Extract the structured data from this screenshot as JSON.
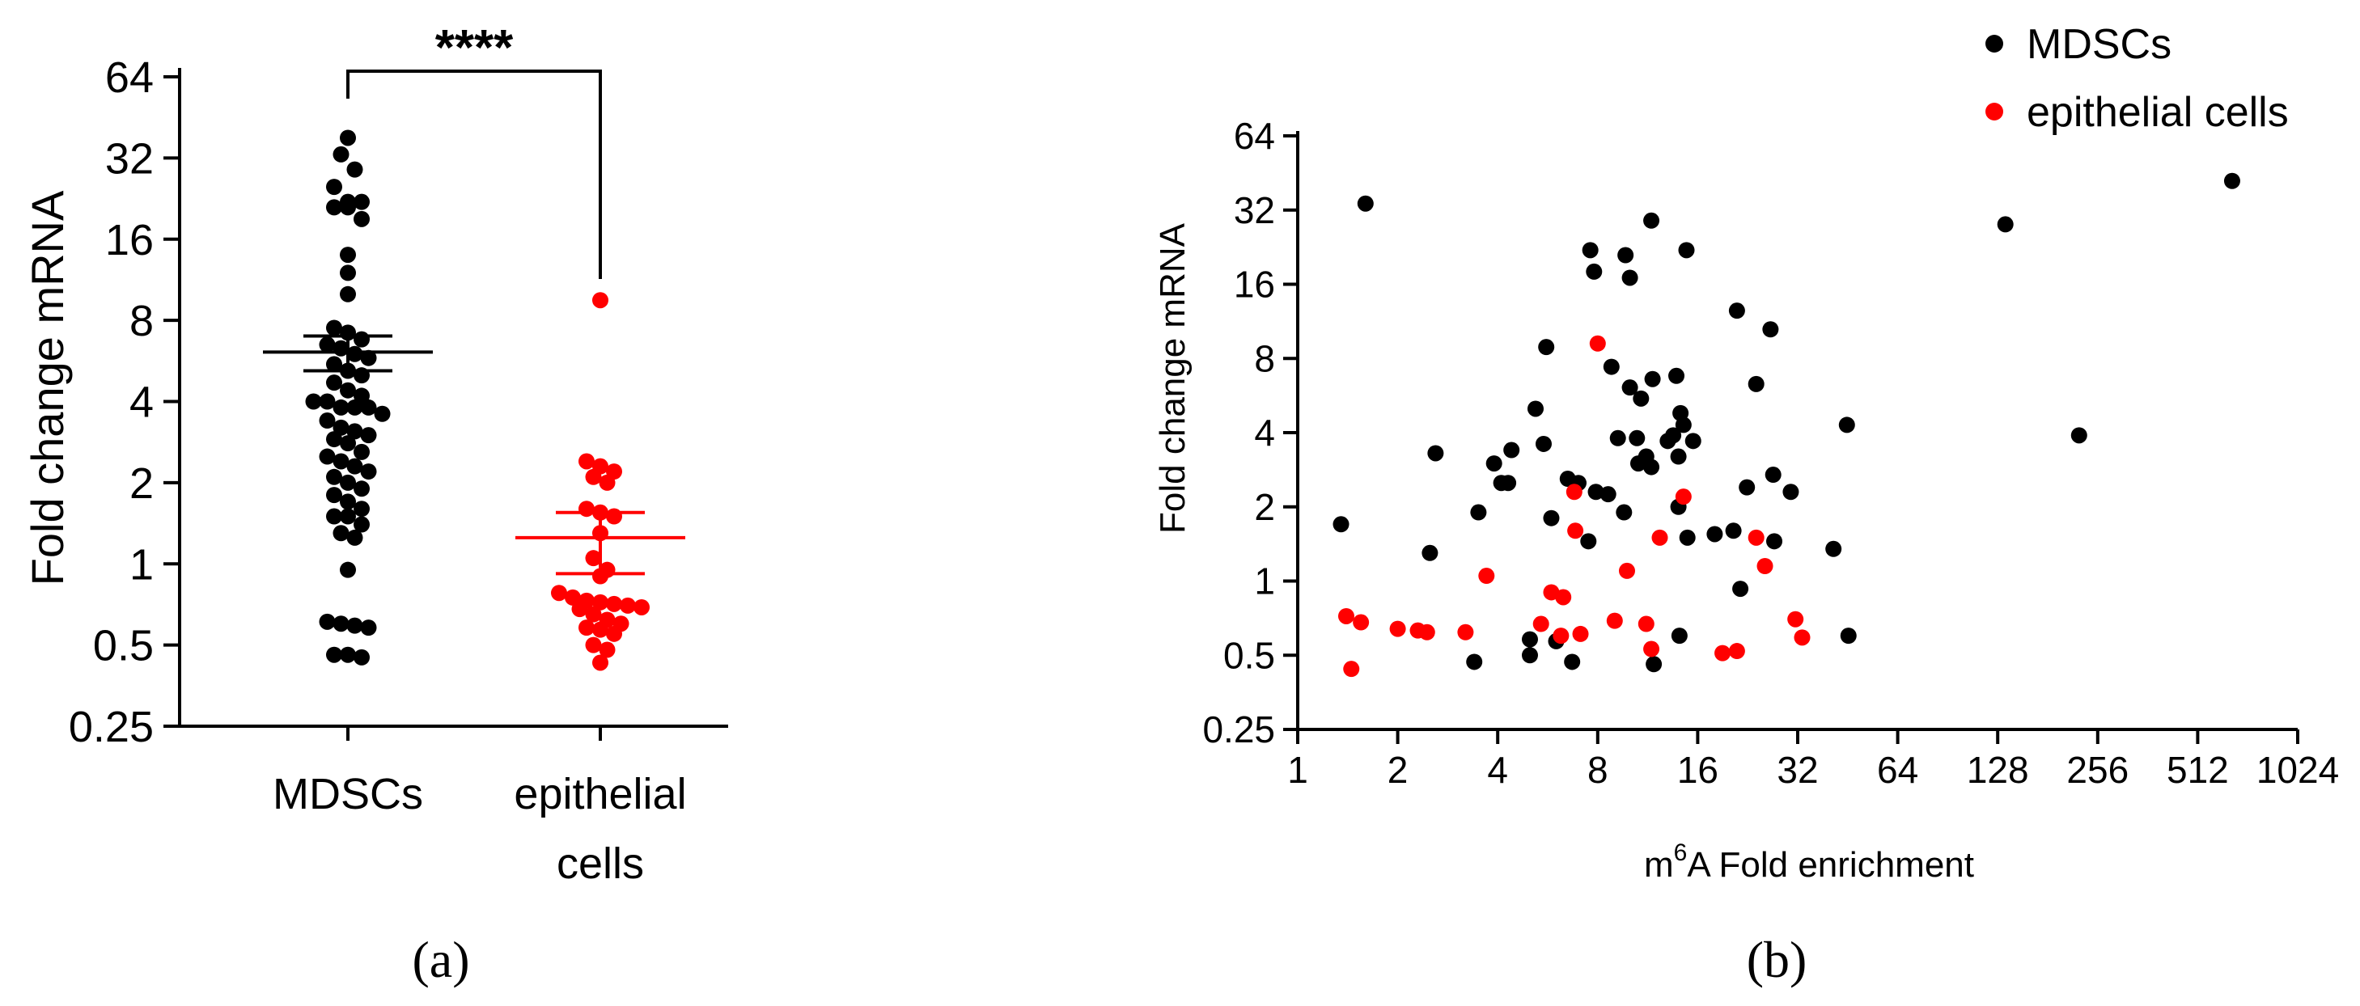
{
  "chart_data": [
    {
      "panel_label": "(a)",
      "type": "scatter",
      "subtype": "dot-plot with mean and SEM",
      "ylabel": "Fold change mRNA",
      "y_scale": "log2",
      "ylim": [
        0.25,
        64
      ],
      "y_ticks": [
        "0.25",
        "0.5",
        "1",
        "2",
        "4",
        "8",
        "16",
        "32",
        "64"
      ],
      "categories": [
        "MDSCs",
        "epithelial cells"
      ],
      "category_lines": [
        [
          "MDSCs"
        ],
        [
          "epithelial",
          "cells"
        ]
      ],
      "significance": "****",
      "colors": {
        "MDSCs": "#000000",
        "epithelial cells": "#ff0000"
      },
      "series": [
        {
          "name": "MDSCs",
          "mean": 6.1,
          "sem_lower": 5.2,
          "sem_upper": 7.0,
          "values": [
            38,
            33,
            29,
            25,
            22,
            22,
            21,
            21,
            19,
            14,
            12,
            10,
            7.5,
            7.2,
            6.8,
            6.5,
            6.3,
            6.0,
            5.8,
            5.5,
            5.2,
            5.0,
            4.7,
            4.4,
            4.2,
            4.0,
            4.0,
            3.8,
            3.8,
            3.8,
            3.6,
            3.4,
            3.2,
            3.1,
            3.0,
            2.9,
            2.8,
            2.6,
            2.5,
            2.4,
            2.3,
            2.2,
            2.1,
            2.0,
            1.9,
            1.8,
            1.7,
            1.6,
            1.5,
            1.5,
            1.4,
            1.3,
            1.25,
            0.95,
            0.61,
            0.6,
            0.59,
            0.58,
            0.46,
            0.46,
            0.45
          ]
        },
        {
          "name": "epithelial cells",
          "mean": 1.25,
          "sem_lower": 0.92,
          "sem_upper": 1.55,
          "values": [
            9.5,
            2.4,
            2.3,
            2.2,
            2.1,
            2.0,
            1.6,
            1.55,
            1.5,
            1.3,
            1.05,
            0.95,
            0.9,
            0.78,
            0.75,
            0.73,
            0.72,
            0.71,
            0.7,
            0.69,
            0.68,
            0.65,
            0.62,
            0.6,
            0.58,
            0.57,
            0.55,
            0.5,
            0.48,
            0.43
          ]
        }
      ]
    },
    {
      "panel_label": "(b)",
      "type": "scatter",
      "xlabel_prefix": "m",
      "xlabel_superscript": "6",
      "xlabel_rest": "A Fold enrichment",
      "ylabel": "Fold change mRNA",
      "x_scale": "log2",
      "y_scale": "log2",
      "xlim": [
        1,
        1024
      ],
      "ylim": [
        0.25,
        64
      ],
      "x_ticks": [
        "1",
        "2",
        "4",
        "8",
        "16",
        "32",
        "64",
        "128",
        "256",
        "512",
        "1024"
      ],
      "y_ticks": [
        "0.25",
        "0.5",
        "1",
        "2",
        "4",
        "8",
        "16",
        "32",
        "64"
      ],
      "legend_position": "top-right",
      "colors": {
        "MDSCs": "#000000",
        "epithelial cells": "#ff0000"
      },
      "series": [
        {
          "name": "MDSCs",
          "points": [
            [
              1.35,
              1.7
            ],
            [
              1.6,
              34
            ],
            [
              2.5,
              1.3
            ],
            [
              2.6,
              3.3
            ],
            [
              3.4,
              0.47
            ],
            [
              3.5,
              1.9
            ],
            [
              3.9,
              3.0
            ],
            [
              4.1,
              2.5
            ],
            [
              4.3,
              2.5
            ],
            [
              4.4,
              3.4
            ],
            [
              5.0,
              0.5
            ],
            [
              5.0,
              0.58
            ],
            [
              5.2,
              5.0
            ],
            [
              5.5,
              3.6
            ],
            [
              5.6,
              8.9
            ],
            [
              5.8,
              1.8
            ],
            [
              6.0,
              0.57
            ],
            [
              6.5,
              2.6
            ],
            [
              6.7,
              0.47
            ],
            [
              7.0,
              2.5
            ],
            [
              7.5,
              1.45
            ],
            [
              7.6,
              22
            ],
            [
              7.8,
              18
            ],
            [
              7.9,
              2.3
            ],
            [
              8.6,
              2.25
            ],
            [
              8.8,
              7.4
            ],
            [
              9.2,
              3.8
            ],
            [
              9.6,
              1.9
            ],
            [
              9.7,
              21
            ],
            [
              10.0,
              17
            ],
            [
              10.0,
              6.1
            ],
            [
              10.5,
              3.8
            ],
            [
              10.6,
              3.0
            ],
            [
              10.8,
              5.5
            ],
            [
              11.2,
              3.2
            ],
            [
              11.6,
              29
            ],
            [
              11.6,
              2.9
            ],
            [
              11.7,
              6.6
            ],
            [
              11.8,
              0.46
            ],
            [
              13.0,
              3.7
            ],
            [
              13.5,
              3.9
            ],
            [
              13.8,
              6.8
            ],
            [
              14.0,
              2.0
            ],
            [
              14.0,
              3.2
            ],
            [
              14.1,
              0.6
            ],
            [
              14.2,
              4.8
            ],
            [
              14.5,
              4.3
            ],
            [
              14.8,
              22
            ],
            [
              14.9,
              1.5
            ],
            [
              15.5,
              3.7
            ],
            [
              18.0,
              1.55
            ],
            [
              20.5,
              1.6
            ],
            [
              21.0,
              12.5
            ],
            [
              21.5,
              0.93
            ],
            [
              22.5,
              2.4
            ],
            [
              24.0,
              6.3
            ],
            [
              26.5,
              10.5
            ],
            [
              27.0,
              2.7
            ],
            [
              27.2,
              1.45
            ],
            [
              30.5,
              2.3
            ],
            [
              41.0,
              1.35
            ],
            [
              45.0,
              4.3
            ],
            [
              45.5,
              0.6
            ],
            [
              135,
              28
            ],
            [
              225,
              3.9
            ],
            [
              650,
              42
            ]
          ]
        },
        {
          "name": "epithelial cells",
          "points": [
            [
              1.4,
              0.72
            ],
            [
              1.45,
              0.44
            ],
            [
              1.55,
              0.68
            ],
            [
              2.0,
              0.64
            ],
            [
              2.3,
              0.63
            ],
            [
              2.45,
              0.62
            ],
            [
              3.2,
              0.62
            ],
            [
              3.7,
              1.05
            ],
            [
              5.4,
              0.67
            ],
            [
              5.8,
              0.9
            ],
            [
              6.2,
              0.6
            ],
            [
              6.3,
              0.86
            ],
            [
              6.8,
              2.3
            ],
            [
              6.85,
              1.6
            ],
            [
              7.1,
              0.61
            ],
            [
              8.0,
              9.2
            ],
            [
              9.0,
              0.69
            ],
            [
              9.8,
              1.1
            ],
            [
              11.2,
              0.67
            ],
            [
              11.6,
              0.53
            ],
            [
              12.3,
              1.5
            ],
            [
              14.5,
              2.2
            ],
            [
              19.0,
              0.51
            ],
            [
              21.0,
              0.52
            ],
            [
              24.0,
              1.5
            ],
            [
              25.5,
              1.15
            ],
            [
              31.5,
              0.7
            ],
            [
              33.0,
              0.59
            ]
          ]
        }
      ]
    }
  ]
}
